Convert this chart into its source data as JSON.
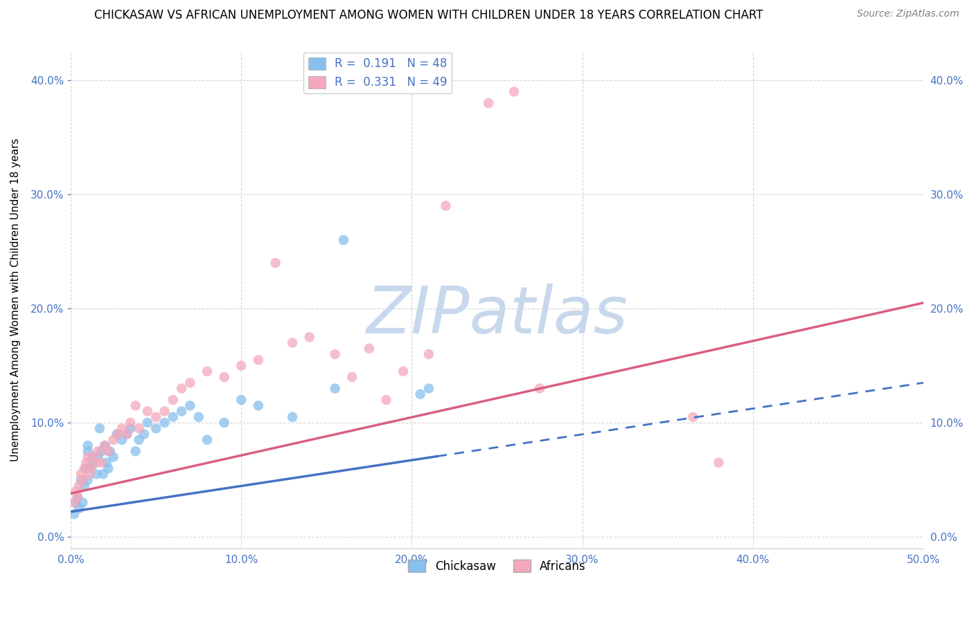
{
  "title": "CHICKASAW VS AFRICAN UNEMPLOYMENT AMONG WOMEN WITH CHILDREN UNDER 18 YEARS CORRELATION CHART",
  "source": "Source: ZipAtlas.com",
  "ylabel": "Unemployment Among Women with Children Under 18 years",
  "legend_r1": "R =  0.191   N = 48",
  "legend_r2": "R =  0.331   N = 49",
  "legend_label1": "Chickasaw",
  "legend_label2": "Africans",
  "chickasaw_color": "#87BFED",
  "african_color": "#F4A8BB",
  "trendline_chickasaw_color": "#4472C4",
  "trendline_african_color": "#D95F7F",
  "watermark": "ZIPatlas",
  "watermark_color": "#C8D8EC",
  "background_color": "#FFFFFF",
  "grid_color": "#CCCCCC",
  "xlim": [
    0,
    0.5
  ],
  "ylim": [
    -0.01,
    0.425
  ],
  "xticks": [
    0,
    0.1,
    0.2,
    0.3,
    0.4,
    0.5
  ],
  "yticks": [
    0,
    0.1,
    0.2,
    0.3,
    0.4
  ],
  "axis_color": "#4472C4",
  "trendline_split_x": 0.215,
  "blue_line_start_x": 0.0,
  "blue_line_start_y": 0.022,
  "blue_line_end_x": 0.5,
  "blue_line_end_y": 0.135,
  "pink_line_start_x": 0.0,
  "pink_line_start_y": 0.038,
  "pink_line_end_x": 0.5,
  "pink_line_end_y": 0.205,
  "chickasaw_x": [
    0.002,
    0.003,
    0.004,
    0.005,
    0.006,
    0.007,
    0.008,
    0.009,
    0.01,
    0.01,
    0.01,
    0.011,
    0.012,
    0.013,
    0.014,
    0.015,
    0.016,
    0.017,
    0.018,
    0.019,
    0.02,
    0.021,
    0.022,
    0.023,
    0.025,
    0.027,
    0.03,
    0.033,
    0.035,
    0.038,
    0.04,
    0.043,
    0.045,
    0.05,
    0.055,
    0.06,
    0.065,
    0.07,
    0.075,
    0.08,
    0.09,
    0.1,
    0.11,
    0.13,
    0.155,
    0.16,
    0.205,
    0.21
  ],
  "chickasaw_y": [
    0.02,
    0.03,
    0.035,
    0.025,
    0.05,
    0.03,
    0.045,
    0.06,
    0.05,
    0.075,
    0.08,
    0.06,
    0.065,
    0.07,
    0.065,
    0.055,
    0.07,
    0.095,
    0.075,
    0.055,
    0.08,
    0.065,
    0.06,
    0.075,
    0.07,
    0.09,
    0.085,
    0.09,
    0.095,
    0.075,
    0.085,
    0.09,
    0.1,
    0.095,
    0.1,
    0.105,
    0.11,
    0.115,
    0.105,
    0.085,
    0.1,
    0.12,
    0.115,
    0.105,
    0.13,
    0.26,
    0.125,
    0.13
  ],
  "african_x": [
    0.002,
    0.003,
    0.004,
    0.005,
    0.006,
    0.007,
    0.008,
    0.009,
    0.01,
    0.011,
    0.012,
    0.013,
    0.015,
    0.016,
    0.018,
    0.02,
    0.022,
    0.025,
    0.028,
    0.03,
    0.033,
    0.035,
    0.038,
    0.04,
    0.045,
    0.05,
    0.055,
    0.06,
    0.065,
    0.07,
    0.08,
    0.09,
    0.1,
    0.11,
    0.12,
    0.13,
    0.14,
    0.155,
    0.165,
    0.175,
    0.185,
    0.195,
    0.21,
    0.22,
    0.245,
    0.26,
    0.275,
    0.365,
    0.38
  ],
  "african_y": [
    0.03,
    0.04,
    0.035,
    0.045,
    0.055,
    0.05,
    0.06,
    0.065,
    0.07,
    0.055,
    0.06,
    0.07,
    0.065,
    0.075,
    0.065,
    0.08,
    0.075,
    0.085,
    0.09,
    0.095,
    0.09,
    0.1,
    0.115,
    0.095,
    0.11,
    0.105,
    0.11,
    0.12,
    0.13,
    0.135,
    0.145,
    0.14,
    0.15,
    0.155,
    0.24,
    0.17,
    0.175,
    0.16,
    0.14,
    0.165,
    0.12,
    0.145,
    0.16,
    0.29,
    0.38,
    0.39,
    0.13,
    0.105,
    0.065
  ]
}
